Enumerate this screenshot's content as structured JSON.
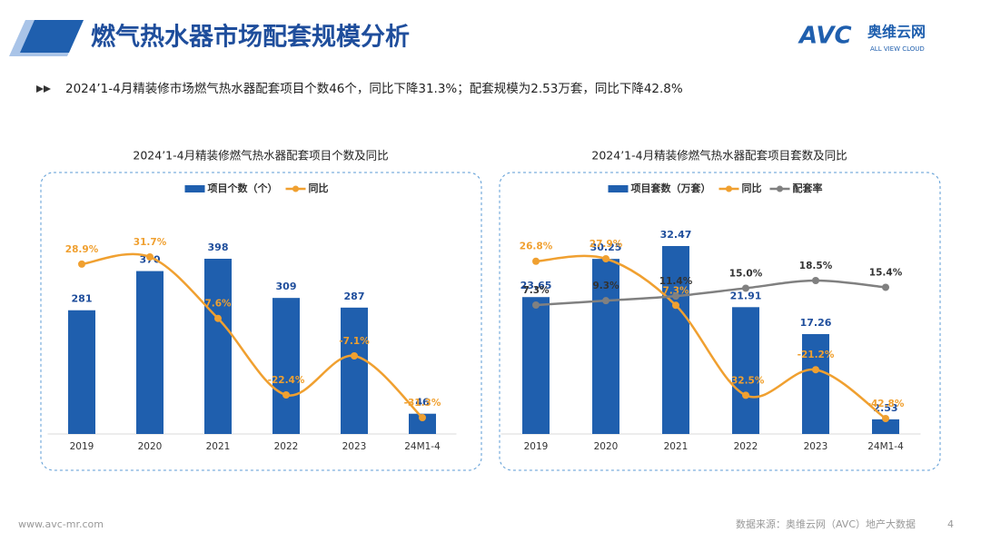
{
  "header": {
    "title": "燃气热水器市场配套规模分析",
    "logo_mark": "AVC",
    "logo_name": "奥维云网",
    "logo_tagline": "ALL VIEW CLOUD"
  },
  "summary": "2024’1-4月精装修市场燃气热水器配套项目个数46个，同比下降31.3%；配套规模为2.53万套，同比下降42.8%",
  "chart_data": [
    {
      "type": "bar",
      "title": "2024’1-4月精装修燃气热水器配套项目个数及同比",
      "categories": [
        "2019",
        "2020",
        "2021",
        "2022",
        "2023",
        "24M1-4"
      ],
      "series": [
        {
          "name": "项目个数（个）",
          "type": "bar",
          "color": "#1f5fae",
          "values": [
            281,
            370,
            398,
            309,
            287,
            46
          ]
        },
        {
          "name": "同比",
          "type": "line",
          "color": "#f0a030",
          "values": [
            28.9,
            31.7,
            7.6,
            -22.4,
            -7.1,
            -31.3
          ],
          "value_labels": [
            "28.9%",
            "31.7%",
            "7.6%",
            "-22.4%",
            "-7.1%",
            "-31.3%"
          ]
        }
      ]
    },
    {
      "type": "bar",
      "title": "2024’1-4月精装修燃气热水器配套项目套数及同比",
      "categories": [
        "2019",
        "2020",
        "2021",
        "2022",
        "2023",
        "24M1-4"
      ],
      "series": [
        {
          "name": "项目套数（万套）",
          "type": "bar",
          "color": "#1f5fae",
          "values": [
            23.65,
            30.25,
            32.47,
            21.91,
            17.26,
            2.53
          ]
        },
        {
          "name": "同比",
          "type": "line",
          "color": "#f0a030",
          "values": [
            26.8,
            27.9,
            7.3,
            -32.5,
            -21.2,
            -42.8
          ],
          "value_labels": [
            "26.8%",
            "27.9%",
            "7.3%",
            "-32.5%",
            "-21.2%",
            "-42.8%"
          ]
        },
        {
          "name": "配套率",
          "type": "line",
          "color": "#808080",
          "values": [
            7.3,
            9.3,
            11.4,
            15.0,
            18.5,
            15.4
          ],
          "value_labels": [
            "7.3%",
            "9.3%",
            "11.4%",
            "15.0%",
            "18.5%",
            "15.4%"
          ]
        }
      ]
    }
  ],
  "footer": {
    "url": "www.avc-mr.com",
    "source": "数据来源：奥维云网（AVC）地产大数据",
    "page": "4"
  }
}
